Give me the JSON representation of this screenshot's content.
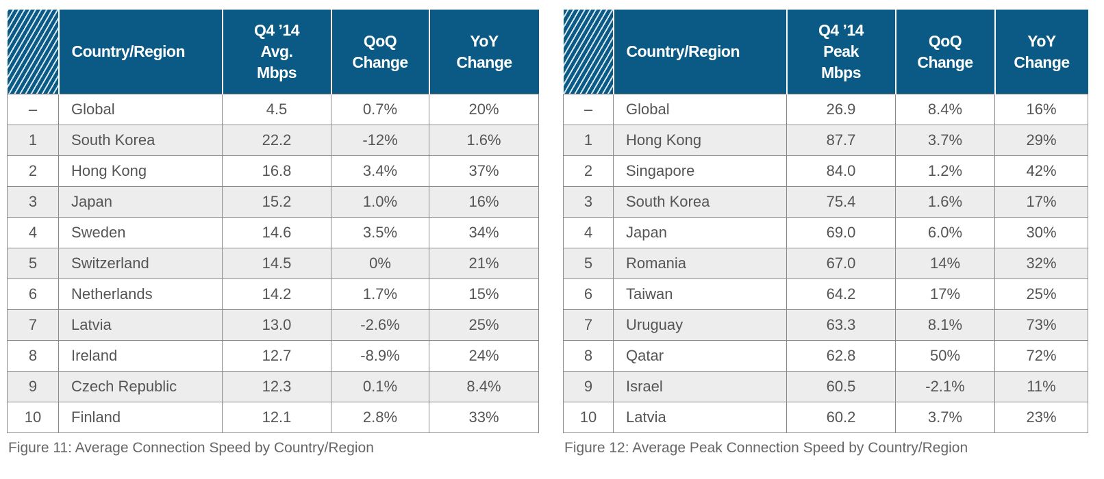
{
  "figures": [
    {
      "caption": "Figure 11: Average Connection Speed by Country/Region",
      "headers": [
        "Country/Region",
        "Q4 ’14 Avg. Mbps",
        "QoQ Change",
        "YoY Change"
      ],
      "rows": [
        [
          "–",
          "Global",
          "4.5",
          "0.7%",
          "20%"
        ],
        [
          "1",
          "South Korea",
          "22.2",
          "-12%",
          "1.6%"
        ],
        [
          "2",
          "Hong Kong",
          "16.8",
          "3.4%",
          "37%"
        ],
        [
          "3",
          "Japan",
          "15.2",
          "1.0%",
          "16%"
        ],
        [
          "4",
          "Sweden",
          "14.6",
          "3.5%",
          "34%"
        ],
        [
          "5",
          "Switzerland",
          "14.5",
          "0%",
          "21%"
        ],
        [
          "6",
          "Netherlands",
          "14.2",
          "1.7%",
          "15%"
        ],
        [
          "7",
          "Latvia",
          "13.0",
          "-2.6%",
          "25%"
        ],
        [
          "8",
          "Ireland",
          "12.7",
          "-8.9%",
          "24%"
        ],
        [
          "9",
          "Czech Republic",
          "12.3",
          "0.1%",
          "8.4%"
        ],
        [
          "10",
          "Finland",
          "12.1",
          "2.8%",
          "33%"
        ]
      ]
    },
    {
      "caption": "Figure 12: Average Peak Connection Speed by Country/Region",
      "headers": [
        "Country/Region",
        "Q4 ’14 Peak Mbps",
        "QoQ Change",
        "YoY Change"
      ],
      "rows": [
        [
          "–",
          "Global",
          "26.9",
          "8.4%",
          "16%"
        ],
        [
          "1",
          "Hong Kong",
          "87.7",
          "3.7%",
          "29%"
        ],
        [
          "2",
          "Singapore",
          "84.0",
          "1.2%",
          "42%"
        ],
        [
          "3",
          "South Korea",
          "75.4",
          "1.6%",
          "17%"
        ],
        [
          "4",
          "Japan",
          "69.0",
          "6.0%",
          "30%"
        ],
        [
          "5",
          "Romania",
          "67.0",
          "14%",
          "32%"
        ],
        [
          "6",
          "Taiwan",
          "64.2",
          "17%",
          "25%"
        ],
        [
          "7",
          "Uruguay",
          "63.3",
          "8.1%",
          "73%"
        ],
        [
          "8",
          "Qatar",
          "62.8",
          "50%",
          "72%"
        ],
        [
          "9",
          "Israel",
          "60.5",
          "-2.1%",
          "11%"
        ],
        [
          "10",
          "Latvia",
          "60.2",
          "3.7%",
          "23%"
        ]
      ]
    }
  ]
}
